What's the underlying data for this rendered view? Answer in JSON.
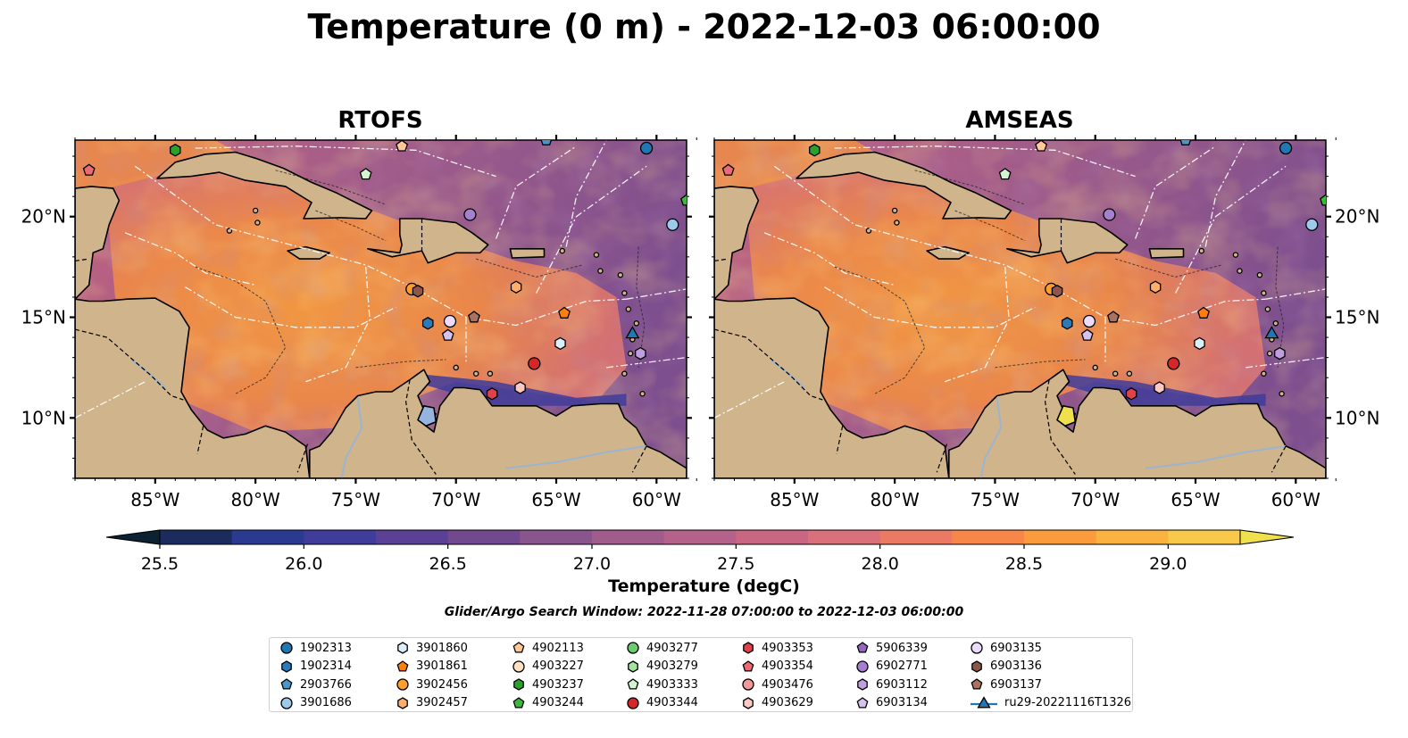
{
  "title": "Temperature (0 m) - 2022-12-03 06:00:00",
  "panels": [
    {
      "name": "RTOFS"
    },
    {
      "name": "AMSEAS"
    }
  ],
  "axes": {
    "x_ticks": [
      "85°W",
      "80°W",
      "75°W",
      "70°W",
      "65°W",
      "60°W"
    ],
    "x_values": [
      -85,
      -80,
      -75,
      -70,
      -65,
      -60
    ],
    "y_ticks": [
      "20°N",
      "15°N",
      "10°N"
    ],
    "y_values": [
      20,
      15,
      10
    ],
    "lon_range": [
      -89,
      -58.5
    ],
    "lat_range": [
      7,
      23.8
    ]
  },
  "colorbar": {
    "label": "Temperature (degC)",
    "range": [
      25.5,
      29.25
    ],
    "ticks": [
      "25.5",
      "26.0",
      "26.5",
      "27.0",
      "27.5",
      "28.0",
      "28.5",
      "29.0"
    ],
    "tick_values": [
      25.5,
      26.0,
      26.5,
      27.0,
      27.5,
      28.0,
      28.5,
      29.0
    ],
    "extend": "both",
    "colors": [
      "#0b2232",
      "#1b2b5e",
      "#2a3a8e",
      "#3f3c9a",
      "#5b4196",
      "#72498f",
      "#8a548d",
      "#a05c8a",
      "#b5628a",
      "#c96783",
      "#d9707a",
      "#ea7a63",
      "#f78748",
      "#fa9c3c",
      "#fab241",
      "#f8c94a",
      "#f0e04e"
    ]
  },
  "search_window": "Glider/Argo Search Window: 2022-11-28 07:00:00 to 2022-12-03 06:00:00",
  "legend": [
    {
      "label": "1902313",
      "marker": "circle",
      "color": "#1f77b4"
    },
    {
      "label": "1902314",
      "marker": "hexagon",
      "color": "#2b7bba"
    },
    {
      "label": "2903766",
      "marker": "pentagon",
      "color": "#4c95c8"
    },
    {
      "label": "3901686",
      "marker": "circle",
      "color": "#9ecae9"
    },
    {
      "label": "3901860",
      "marker": "hexagon",
      "color": "#dbeefb"
    },
    {
      "label": "3901861",
      "marker": "pentagon",
      "color": "#ff7f0e"
    },
    {
      "label": "3902456",
      "marker": "circle",
      "color": "#ff9e2c"
    },
    {
      "label": "3902457",
      "marker": "hexagon",
      "color": "#ffaf6a"
    },
    {
      "label": "4902113",
      "marker": "pentagon",
      "color": "#ffc896"
    },
    {
      "label": "4903227",
      "marker": "circle",
      "color": "#ffe0c4"
    },
    {
      "label": "4903237",
      "marker": "hexagon",
      "color": "#2ca02c"
    },
    {
      "label": "4903244",
      "marker": "pentagon",
      "color": "#3cb83c"
    },
    {
      "label": "4903277",
      "marker": "circle",
      "color": "#6dcc6d"
    },
    {
      "label": "4903279",
      "marker": "hexagon",
      "color": "#a4e3a0"
    },
    {
      "label": "4903333",
      "marker": "pentagon",
      "color": "#d2f5cf"
    },
    {
      "label": "4903344",
      "marker": "circle",
      "color": "#d62728"
    },
    {
      "label": "4903353",
      "marker": "hexagon",
      "color": "#e0424a"
    },
    {
      "label": "4903354",
      "marker": "pentagon",
      "color": "#ec6a72"
    },
    {
      "label": "4903476",
      "marker": "circle",
      "color": "#f29898"
    },
    {
      "label": "4903629",
      "marker": "hexagon",
      "color": "#fbc8c4"
    },
    {
      "label": "5906339",
      "marker": "pentagon",
      "color": "#9467bd"
    },
    {
      "label": "6902771",
      "marker": "circle",
      "color": "#a77fd0"
    },
    {
      "label": "6903112",
      "marker": "hexagon",
      "color": "#bf9fe0"
    },
    {
      "label": "6903134",
      "marker": "pentagon",
      "color": "#d6c2ef"
    },
    {
      "label": "6903135",
      "marker": "circle",
      "color": "#ecdcfb"
    },
    {
      "label": "6903136",
      "marker": "hexagon",
      "color": "#8c564b"
    },
    {
      "label": "6903137",
      "marker": "pentagon",
      "color": "#a87362"
    },
    {
      "label": "ru29-20221116T1326",
      "marker": "triangle",
      "color": "#1f77b4"
    }
  ],
  "floats": [
    {
      "id": "4903237",
      "marker": "hexagon",
      "color": "#2ca02c",
      "lon": -84.0,
      "lat": 23.3
    },
    {
      "id": "4903354",
      "marker": "pentagon",
      "color": "#ec6a72",
      "lon": -88.3,
      "lat": 22.3
    },
    {
      "id": "4902113",
      "marker": "pentagon",
      "color": "#ffc896",
      "lon": -72.7,
      "lat": 23.5
    },
    {
      "id": "2903766",
      "marker": "pentagon",
      "color": "#4c95c8",
      "lon": -65.5,
      "lat": 23.8
    },
    {
      "id": "1902313",
      "marker": "circle",
      "color": "#1f77b4",
      "lon": -60.5,
      "lat": 23.4
    },
    {
      "id": "4903333",
      "marker": "pentagon",
      "color": "#d2f5cf",
      "lon": -74.5,
      "lat": 22.1
    },
    {
      "id": "4903244",
      "marker": "pentagon",
      "color": "#3cb83c",
      "lon": -58.5,
      "lat": 20.8
    },
    {
      "id": "3901686",
      "marker": "circle",
      "color": "#9ecae9",
      "lon": -59.2,
      "lat": 19.6
    },
    {
      "id": "6902771",
      "marker": "circle",
      "color": "#a77fd0",
      "lon": -69.3,
      "lat": 20.1
    },
    {
      "id": "3902456",
      "marker": "circle",
      "color": "#ff9e2c",
      "lon": -72.2,
      "lat": 16.4
    },
    {
      "id": "6903136",
      "marker": "hexagon",
      "color": "#8c564b",
      "lon": -71.9,
      "lat": 16.3
    },
    {
      "id": "3902457",
      "marker": "hexagon",
      "color": "#ffaf6a",
      "lon": -67.0,
      "lat": 16.5
    },
    {
      "id": "3901861",
      "marker": "pentagon",
      "color": "#ff7f0e",
      "lon": -64.6,
      "lat": 15.2
    },
    {
      "id": "6903137",
      "marker": "pentagon",
      "color": "#a87362",
      "lon": -69.1,
      "lat": 15.0
    },
    {
      "id": "6903135",
      "marker": "circle",
      "color": "#ecdcfb",
      "lon": -70.3,
      "lat": 14.8
    },
    {
      "id": "1902314",
      "marker": "hexagon",
      "color": "#2b7bba",
      "lon": -71.4,
      "lat": 14.7
    },
    {
      "id": "6903134",
      "marker": "pentagon",
      "color": "#d6c2ef",
      "lon": -70.4,
      "lat": 14.1
    },
    {
      "id": "3901860",
      "marker": "hexagon",
      "color": "#dbeefb",
      "lon": -64.8,
      "lat": 13.7
    },
    {
      "id": "ru29-20221116T1326",
      "marker": "triangle",
      "color": "#1f77b4",
      "lon": -61.2,
      "lat": 14.2
    },
    {
      "id": "6903112",
      "marker": "hexagon",
      "color": "#bf9fe0",
      "lon": -60.8,
      "lat": 13.2
    },
    {
      "id": "4903344",
      "marker": "circle",
      "color": "#d62728",
      "lon": -66.1,
      "lat": 12.7
    },
    {
      "id": "4903629",
      "marker": "hexagon",
      "color": "#fbc8c4",
      "lon": -66.8,
      "lat": 11.5
    },
    {
      "id": "4903353",
      "marker": "hexagon",
      "color": "#e0424a",
      "lon": -68.2,
      "lat": 11.2
    }
  ]
}
